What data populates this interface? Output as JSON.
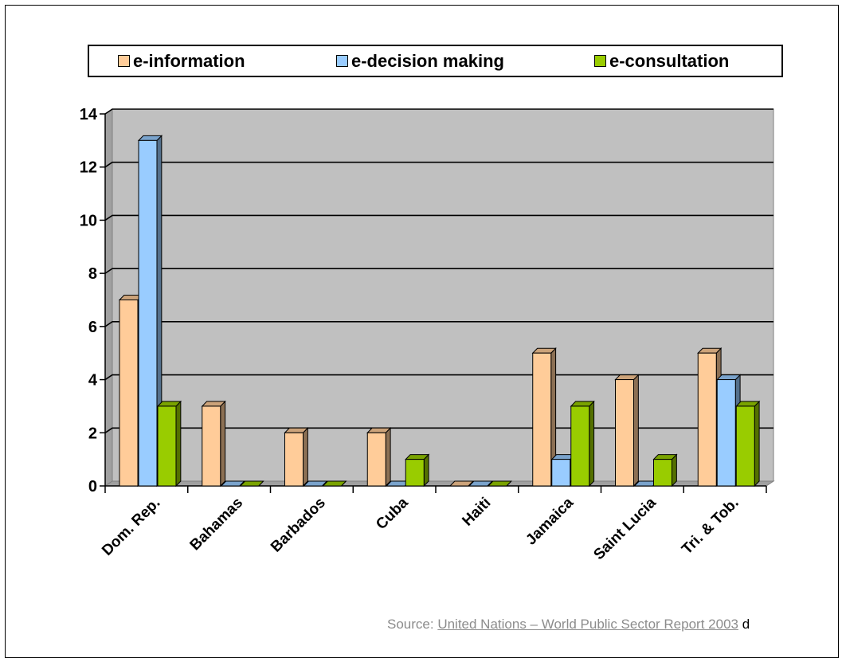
{
  "legend": {
    "items": [
      {
        "label": "e-information",
        "color": "#ffcc99"
      },
      {
        "label": "e-decision making",
        "color": "#99ccff"
      },
      {
        "label": "e-consultation",
        "color": "#99cc00"
      }
    ]
  },
  "source": {
    "prefix": "Source: ",
    "link_text": "United Nations – World Public Sector Report 2003",
    "trail": "d"
  },
  "chart_data": {
    "type": "bar",
    "style": "3d-clustered-column",
    "categories": [
      "Dom. Rep.",
      "Bahamas",
      "Barbados",
      "Cuba",
      "Haiti",
      "Jamaica",
      "Saint Lucia",
      "Tri. & Tob."
    ],
    "series": [
      {
        "name": "e-information",
        "color": "#ffcc99",
        "values": [
          7,
          3,
          2,
          2,
          0,
          5,
          4,
          5
        ]
      },
      {
        "name": "e-decision making",
        "color": "#99ccff",
        "values": [
          13,
          0,
          0,
          0,
          0,
          1,
          0,
          4
        ]
      },
      {
        "name": "e-consultation",
        "color": "#99cc00",
        "values": [
          3,
          0,
          0,
          1,
          0,
          3,
          1,
          3
        ]
      }
    ],
    "ylim": [
      0,
      14
    ],
    "yticks": [
      "0",
      "2",
      "4",
      "6",
      "8",
      "10",
      "12",
      "14"
    ],
    "grid": true,
    "plot_background": "#c0c0c0",
    "legend_position": "top"
  }
}
